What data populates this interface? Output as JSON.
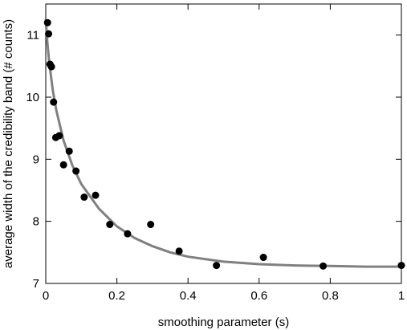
{
  "chart_data": {
    "type": "scatter",
    "xlabel": "smoothing parameter (s)",
    "ylabel": "average width of the credibility band (# counts)",
    "xlim": [
      0,
      1
    ],
    "ylim": [
      7,
      11.5
    ],
    "x_ticks": [
      0,
      0.2,
      0.4,
      0.6,
      0.8,
      1
    ],
    "x_tick_labels": [
      "0",
      "0.2",
      "0.4",
      "0.6",
      "0.8",
      "1"
    ],
    "y_ticks": [
      7,
      8,
      9,
      10,
      11
    ],
    "y_tick_labels": [
      "7",
      "8",
      "9",
      "10",
      "11"
    ],
    "grid": false,
    "legend": "none",
    "series": [
      {
        "kind": "points",
        "color": "#000000",
        "points": [
          {
            "x": 0.005,
            "y": 11.2
          },
          {
            "x": 0.008,
            "y": 11.02
          },
          {
            "x": 0.012,
            "y": 10.53
          },
          {
            "x": 0.016,
            "y": 10.49
          },
          {
            "x": 0.022,
            "y": 9.92
          },
          {
            "x": 0.028,
            "y": 9.35
          },
          {
            "x": 0.038,
            "y": 9.38
          },
          {
            "x": 0.05,
            "y": 8.91
          },
          {
            "x": 0.066,
            "y": 9.13
          },
          {
            "x": 0.085,
            "y": 8.81
          },
          {
            "x": 0.108,
            "y": 8.39
          },
          {
            "x": 0.14,
            "y": 8.42
          },
          {
            "x": 0.18,
            "y": 7.95
          },
          {
            "x": 0.23,
            "y": 7.8
          },
          {
            "x": 0.295,
            "y": 7.95
          },
          {
            "x": 0.375,
            "y": 7.52
          },
          {
            "x": 0.48,
            "y": 7.29
          },
          {
            "x": 0.612,
            "y": 7.42
          },
          {
            "x": 0.78,
            "y": 7.28
          },
          {
            "x": 1.0,
            "y": 7.29
          }
        ]
      },
      {
        "kind": "curve",
        "color": "#808080",
        "points": [
          {
            "x": 0.0,
            "y": 11.25
          },
          {
            "x": 0.005,
            "y": 10.85
          },
          {
            "x": 0.01,
            "y": 10.55
          },
          {
            "x": 0.02,
            "y": 10.1
          },
          {
            "x": 0.03,
            "y": 9.78
          },
          {
            "x": 0.05,
            "y": 9.3
          },
          {
            "x": 0.075,
            "y": 8.9
          },
          {
            "x": 0.1,
            "y": 8.6
          },
          {
            "x": 0.15,
            "y": 8.2
          },
          {
            "x": 0.2,
            "y": 7.92
          },
          {
            "x": 0.25,
            "y": 7.73
          },
          {
            "x": 0.3,
            "y": 7.6
          },
          {
            "x": 0.35,
            "y": 7.5
          },
          {
            "x": 0.4,
            "y": 7.43
          },
          {
            "x": 0.5,
            "y": 7.35
          },
          {
            "x": 0.6,
            "y": 7.31
          },
          {
            "x": 0.7,
            "y": 7.29
          },
          {
            "x": 0.8,
            "y": 7.28
          },
          {
            "x": 0.9,
            "y": 7.27
          },
          {
            "x": 1.0,
            "y": 7.27
          }
        ]
      }
    ]
  }
}
